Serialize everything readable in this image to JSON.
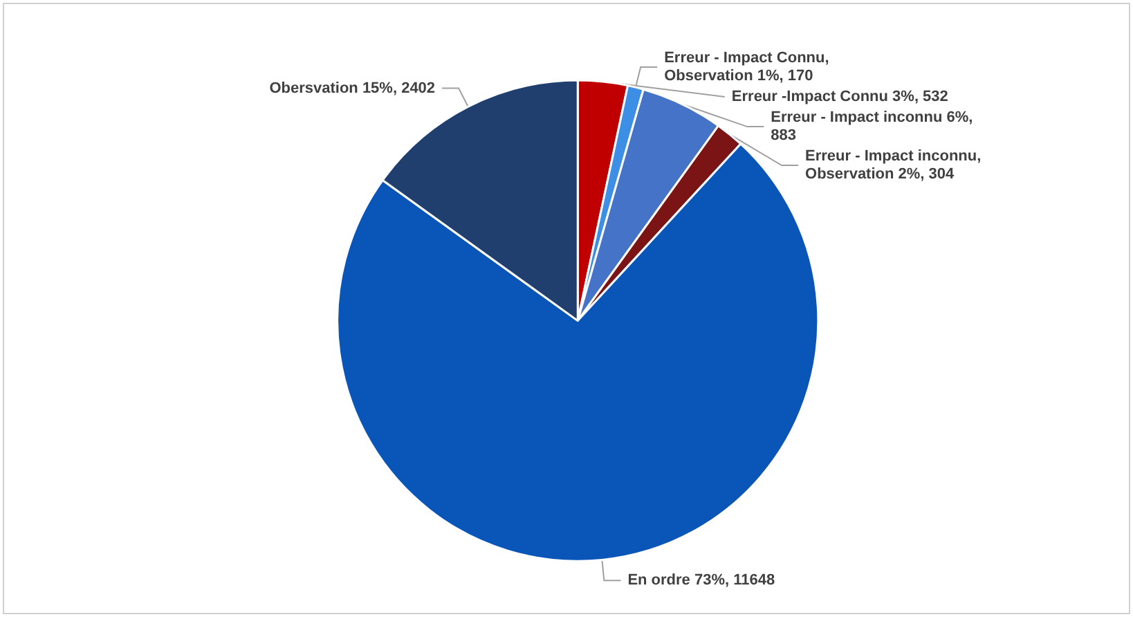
{
  "chart_data": {
    "type": "pie",
    "categories": [
      "Erreur -Impact Connu",
      "Erreur - Impact Connu, Observation",
      "Erreur - Impact inconnu",
      "Erreur - Impact inconnu, Observation",
      "En ordre",
      "Obersvation"
    ],
    "values": [
      532,
      170,
      883,
      304,
      11648,
      2402
    ],
    "value_labels": [
      "3%, 532",
      "1%, 170",
      "6%, 883",
      "2%, 304",
      "73%, 11648",
      "15%, 2402"
    ],
    "colors": [
      "#c00000",
      "#3d8fe6",
      "#4473c8",
      "#7b1414",
      "#0a56b8",
      "#213f6e"
    ]
  }
}
